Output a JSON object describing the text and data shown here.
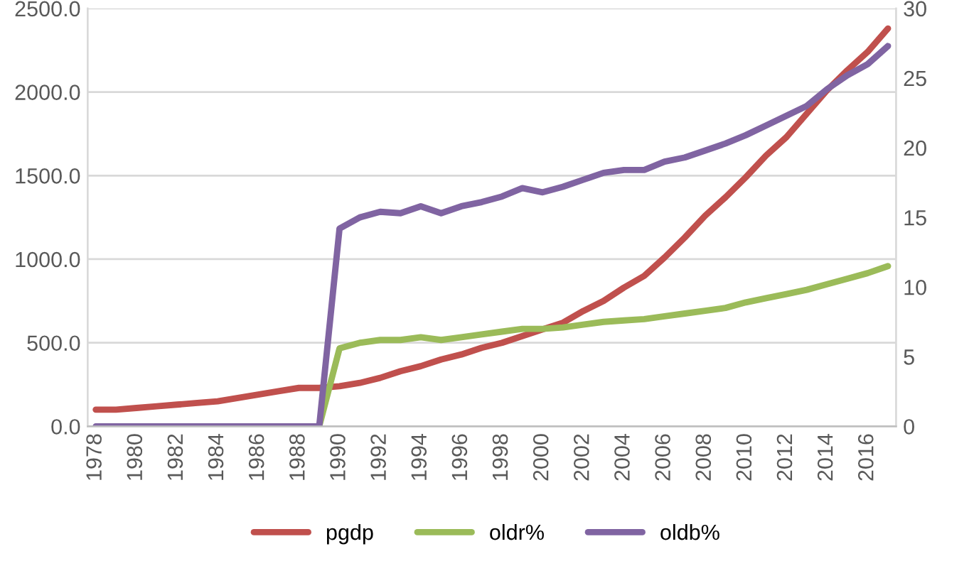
{
  "chart_data": {
    "type": "line",
    "x": [
      1978,
      1979,
      1980,
      1981,
      1982,
      1983,
      1984,
      1985,
      1986,
      1987,
      1988,
      1989,
      1990,
      1991,
      1992,
      1993,
      1994,
      1995,
      1996,
      1997,
      1998,
      1999,
      2000,
      2001,
      2002,
      2003,
      2004,
      2005,
      2006,
      2007,
      2008,
      2009,
      2010,
      2011,
      2012,
      2013,
      2014,
      2015,
      2016,
      2017
    ],
    "series": [
      {
        "name": "pgdp",
        "color": "#c0504d",
        "values": [
          100,
          100,
          110,
          120,
          130,
          140,
          150,
          170,
          190,
          210,
          230,
          230,
          240,
          260,
          290,
          330,
          360,
          400,
          430,
          470,
          500,
          540,
          580,
          620,
          690,
          750,
          830,
          900,
          1010,
          1130,
          1260,
          1370,
          1490,
          1620,
          1730,
          1870,
          2010,
          2130,
          2240,
          2380
        ]
      },
      {
        "name": "oldr%",
        "color": "#9bbb59",
        "axis": "y2",
        "values": [
          null,
          null,
          null,
          null,
          null,
          null,
          null,
          null,
          null,
          null,
          0,
          0,
          5.6,
          6.0,
          6.2,
          6.2,
          6.4,
          6.2,
          6.4,
          6.6,
          6.8,
          7.0,
          7.0,
          7.1,
          7.3,
          7.5,
          7.6,
          7.7,
          7.9,
          8.1,
          8.3,
          8.5,
          8.9,
          9.2,
          9.5,
          9.8,
          10.2,
          10.6,
          11.0,
          11.5
        ]
      },
      {
        "name": "oldb%",
        "color": "#8064a2",
        "axis": "y2",
        "values": [
          0,
          0,
          0,
          0,
          0,
          0,
          0,
          0,
          0,
          0,
          0,
          0,
          14.2,
          15.0,
          15.4,
          15.3,
          15.8,
          15.3,
          15.8,
          16.1,
          16.5,
          17.1,
          16.8,
          17.2,
          17.7,
          18.2,
          18.4,
          18.4,
          19.0,
          19.3,
          19.8,
          20.3,
          20.9,
          21.6,
          22.3,
          23.0,
          24.2,
          25.2,
          26.0,
          27.3
        ]
      }
    ],
    "xlim": [
      1977.6,
      2017.4
    ],
    "xticks": [
      1978,
      1980,
      1982,
      1984,
      1986,
      1988,
      1990,
      1992,
      1994,
      1996,
      1998,
      2000,
      2002,
      2004,
      2006,
      2008,
      2010,
      2012,
      2014,
      2016
    ],
    "ylim": [
      0,
      2500
    ],
    "yticks": [
      {
        "value": 0,
        "label": "0.0"
      },
      {
        "value": 500,
        "label": "500.0"
      },
      {
        "value": 1000,
        "label": "1000.0"
      },
      {
        "value": 1500,
        "label": "1500.0"
      },
      {
        "value": 2000,
        "label": "2000.0"
      },
      {
        "value": 2500,
        "label": "2500.0"
      }
    ],
    "y2lim": [
      0,
      30
    ],
    "y2ticks": [
      0,
      5,
      10,
      15,
      20,
      25,
      30
    ],
    "grid": "y",
    "legend": "bottom",
    "marker": "none",
    "line_style": "solid"
  }
}
